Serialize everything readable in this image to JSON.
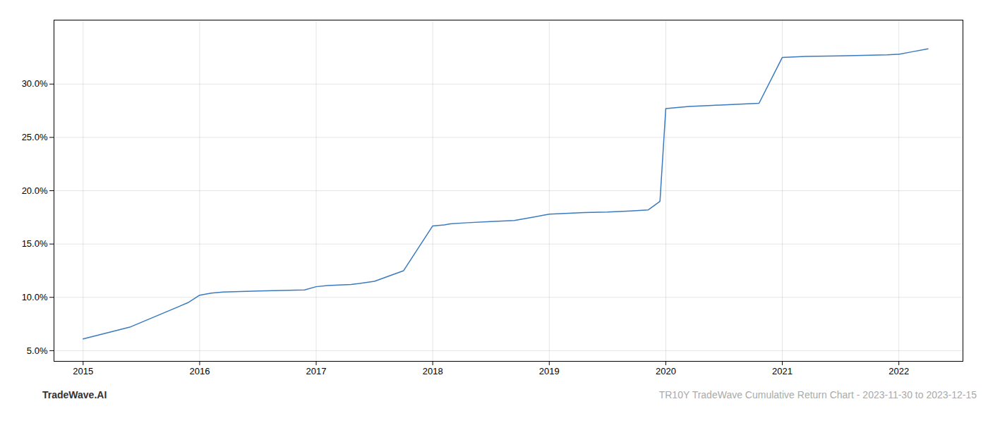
{
  "chart_data": {
    "type": "line",
    "x": [
      2015.0,
      2015.4,
      2015.9,
      2016.0,
      2016.1,
      2016.2,
      2016.5,
      2016.9,
      2017.0,
      2017.1,
      2017.3,
      2017.5,
      2017.75,
      2018.0,
      2018.1,
      2018.15,
      2018.3,
      2018.5,
      2018.7,
      2019.0,
      2019.1,
      2019.2,
      2019.3,
      2019.5,
      2019.7,
      2019.85,
      2019.95,
      2020.0,
      2020.1,
      2020.2,
      2020.4,
      2020.6,
      2020.8,
      2021.0,
      2021.1,
      2021.2,
      2021.5,
      2021.7,
      2021.9,
      2022.0,
      2022.1,
      2022.25
    ],
    "values": [
      6.1,
      7.2,
      9.5,
      10.2,
      10.4,
      10.5,
      10.6,
      10.7,
      11.0,
      11.1,
      11.2,
      11.5,
      12.5,
      16.7,
      16.8,
      16.9,
      17.0,
      17.1,
      17.2,
      17.8,
      17.85,
      17.9,
      17.95,
      18.0,
      18.1,
      18.2,
      19.0,
      27.7,
      27.8,
      27.9,
      28.0,
      28.1,
      28.2,
      32.5,
      32.55,
      32.6,
      32.65,
      32.7,
      32.75,
      32.8,
      33.0,
      33.3
    ],
    "color": "#3a7abf",
    "xlim": [
      2014.75,
      2022.55
    ],
    "xticks": [
      2015,
      2016,
      2017,
      2018,
      2019,
      2020,
      2021,
      2022
    ],
    "ylim": [
      4.0,
      36.0
    ],
    "yticks": [
      {
        "value": 5.0,
        "label": "5.0%"
      },
      {
        "value": 10.0,
        "label": "10.0%"
      },
      {
        "value": 15.0,
        "label": "15.0%"
      },
      {
        "value": 20.0,
        "label": "20.0%"
      },
      {
        "value": 25.0,
        "label": "25.0%"
      },
      {
        "value": 30.0,
        "label": "30.0%"
      }
    ],
    "grid": true,
    "annotations": [
      "TradeWave.AI",
      "TR10Y TradeWave Cumulative Return Chart - 2023-11-30 to 2023-12-15"
    ]
  }
}
